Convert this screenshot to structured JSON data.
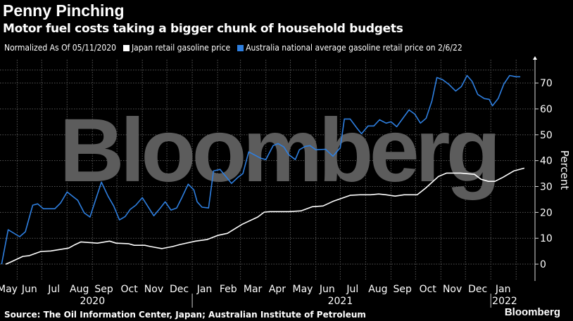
{
  "header": {
    "title": "Penny Pinching",
    "subtitle": "Motor fuel costs taking a bigger chunk of household budgets"
  },
  "footer": {
    "source": "Source: The Oil Information Center, Japan; Australian Institute of Petroleum",
    "logo": "Bloomberg"
  },
  "watermark": "Bloomberg",
  "chart_data": {
    "type": "line",
    "title": "Penny Pinching",
    "subtitle": "Motor fuel costs taking a bigger chunk of household budgets",
    "note": "Normalized As Of 05/11/2020",
    "ylabel": "Percent",
    "xlim": [
      "2020-05-11",
      "2022-02-24"
    ],
    "ylim": [
      -6.5,
      79
    ],
    "yticks": [
      0,
      10,
      20,
      30,
      40,
      50,
      60,
      70
    ],
    "xticks": [
      {
        "label": "May",
        "date": "2020-05-20"
      },
      {
        "label": "Jun",
        "date": "2020-06-16"
      },
      {
        "label": "Jul",
        "date": "2020-07-16"
      },
      {
        "label": "Aug",
        "date": "2020-08-16"
      },
      {
        "label": "Sep",
        "date": "2020-09-15"
      },
      {
        "label": "Oct",
        "date": "2020-10-16"
      },
      {
        "label": "Nov",
        "date": "2020-11-15"
      },
      {
        "label": "Dec",
        "date": "2020-12-16"
      },
      {
        "label": "Jan",
        "date": "2021-01-16"
      },
      {
        "label": "Feb",
        "date": "2021-02-14"
      },
      {
        "label": "Mar",
        "date": "2021-03-16"
      },
      {
        "label": "Apr",
        "date": "2021-04-15"
      },
      {
        "label": "May",
        "date": "2021-05-16"
      },
      {
        "label": "Jun",
        "date": "2021-06-15"
      },
      {
        "label": "Jul",
        "date": "2021-07-16"
      },
      {
        "label": "Aug",
        "date": "2021-08-16"
      },
      {
        "label": "Sep",
        "date": "2021-09-15"
      },
      {
        "label": "Oct",
        "date": "2021-10-16"
      },
      {
        "label": "Nov",
        "date": "2021-11-15"
      },
      {
        "label": "Dec",
        "date": "2021-12-16"
      },
      {
        "label": "Jan",
        "date": "2022-01-16"
      }
    ],
    "years": [
      {
        "label": "2020",
        "date": "2020-09-01"
      },
      {
        "label": "2021",
        "date": "2021-07-01"
      },
      {
        "label": "2022",
        "date": "2022-01-18"
      }
    ],
    "grid": true,
    "legend_placement": "top-left",
    "series": [
      {
        "name": "Japan retail gasoline price",
        "color": "#ffffff",
        "points": [
          [
            "2020-05-18",
            0
          ],
          [
            "2020-05-24",
            0.8
          ],
          [
            "2020-06-08",
            3.0
          ],
          [
            "2020-06-16",
            3.3
          ],
          [
            "2020-06-30",
            4.9
          ],
          [
            "2020-07-12",
            5.1
          ],
          [
            "2020-08-03",
            6.2
          ],
          [
            "2020-08-11",
            7.6
          ],
          [
            "2020-08-18",
            8.6
          ],
          [
            "2020-09-07",
            8.1
          ],
          [
            "2020-09-22",
            8.9
          ],
          [
            "2020-09-30",
            8.1
          ],
          [
            "2020-10-15",
            7.9
          ],
          [
            "2020-10-22",
            7.3
          ],
          [
            "2020-11-04",
            7.3
          ],
          [
            "2020-11-11",
            6.8
          ],
          [
            "2020-11-25",
            6.0
          ],
          [
            "2020-12-08",
            6.8
          ],
          [
            "2020-12-17",
            7.6
          ],
          [
            "2021-01-05",
            8.9
          ],
          [
            "2021-01-19",
            9.5
          ],
          [
            "2021-02-01",
            11.1
          ],
          [
            "2021-02-13",
            11.9
          ],
          [
            "2021-03-03",
            15.4
          ],
          [
            "2021-03-22",
            18.2
          ],
          [
            "2021-03-30",
            20.1
          ],
          [
            "2021-04-06",
            20.3
          ],
          [
            "2021-04-29",
            20.3
          ],
          [
            "2021-05-14",
            20.6
          ],
          [
            "2021-05-28",
            22.2
          ],
          [
            "2021-06-10",
            22.5
          ],
          [
            "2021-06-23",
            24.4
          ],
          [
            "2021-07-05",
            25.7
          ],
          [
            "2021-07-13",
            26.6
          ],
          [
            "2021-07-25",
            26.8
          ],
          [
            "2021-08-07",
            26.8
          ],
          [
            "2021-08-17",
            27.1
          ],
          [
            "2021-08-26",
            26.8
          ],
          [
            "2021-09-06",
            26.3
          ],
          [
            "2021-09-17",
            26.8
          ],
          [
            "2021-10-03",
            26.8
          ],
          [
            "2021-10-13",
            29.3
          ],
          [
            "2021-10-29",
            33.9
          ],
          [
            "2021-11-08",
            35.2
          ],
          [
            "2021-11-25",
            35.2
          ],
          [
            "2021-12-12",
            34.7
          ],
          [
            "2021-12-20",
            32.8
          ],
          [
            "2021-12-29",
            32.0
          ],
          [
            "2022-01-06",
            32.0
          ],
          [
            "2022-01-16",
            33.6
          ],
          [
            "2022-01-29",
            36.0
          ],
          [
            "2022-02-11",
            37.1
          ]
        ]
      },
      {
        "name": "Australia national average gasoline retail price on 2/6/22",
        "color": "#2e7fe0",
        "points": [
          [
            "2020-05-13",
            0
          ],
          [
            "2020-05-21",
            13.3
          ],
          [
            "2020-06-04",
            10.6
          ],
          [
            "2020-06-11",
            12.5
          ],
          [
            "2020-06-20",
            22.8
          ],
          [
            "2020-06-26",
            23.3
          ],
          [
            "2020-07-03",
            21.4
          ],
          [
            "2020-07-17",
            21.4
          ],
          [
            "2020-07-24",
            23.6
          ],
          [
            "2020-08-01",
            27.9
          ],
          [
            "2020-08-14",
            24.7
          ],
          [
            "2020-08-22",
            19.8
          ],
          [
            "2020-08-29",
            18.2
          ],
          [
            "2020-09-12",
            31.7
          ],
          [
            "2020-09-20",
            26.3
          ],
          [
            "2020-09-27",
            22.5
          ],
          [
            "2020-10-04",
            17.1
          ],
          [
            "2020-10-11",
            18.4
          ],
          [
            "2020-10-17",
            21.1
          ],
          [
            "2020-10-24",
            22.8
          ],
          [
            "2020-11-01",
            25.7
          ],
          [
            "2020-11-15",
            18.7
          ],
          [
            "2020-11-23",
            21.7
          ],
          [
            "2020-11-29",
            24.1
          ],
          [
            "2020-12-06",
            20.9
          ],
          [
            "2020-12-13",
            21.7
          ],
          [
            "2020-12-19",
            25.5
          ],
          [
            "2020-12-27",
            30.9
          ],
          [
            "2021-01-03",
            28.7
          ],
          [
            "2021-01-07",
            24.1
          ],
          [
            "2021-01-13",
            22.0
          ],
          [
            "2021-01-21",
            21.7
          ],
          [
            "2021-01-27",
            36.0
          ],
          [
            "2021-02-04",
            36.6
          ],
          [
            "2021-02-18",
            31.2
          ],
          [
            "2021-02-26",
            33.6
          ],
          [
            "2021-03-04",
            35.0
          ],
          [
            "2021-03-11",
            43.4
          ],
          [
            "2021-03-26",
            40.9
          ],
          [
            "2021-04-01",
            40.4
          ],
          [
            "2021-04-10",
            45.8
          ],
          [
            "2021-04-16",
            46.6
          ],
          [
            "2021-04-23",
            45.3
          ],
          [
            "2021-04-29",
            42.3
          ],
          [
            "2021-05-07",
            40.4
          ],
          [
            "2021-05-12",
            44.2
          ],
          [
            "2021-05-19",
            45.5
          ],
          [
            "2021-05-25",
            45.8
          ],
          [
            "2021-06-01",
            44.2
          ],
          [
            "2021-06-13",
            44.4
          ],
          [
            "2021-06-22",
            41.7
          ],
          [
            "2021-07-01",
            45.0
          ],
          [
            "2021-07-06",
            56.1
          ],
          [
            "2021-07-13",
            56.1
          ],
          [
            "2021-07-22",
            52.3
          ],
          [
            "2021-07-27",
            50.4
          ],
          [
            "2021-08-04",
            53.4
          ],
          [
            "2021-08-11",
            53.4
          ],
          [
            "2021-08-18",
            55.8
          ],
          [
            "2021-08-26",
            54.5
          ],
          [
            "2021-09-01",
            55.0
          ],
          [
            "2021-09-08",
            53.1
          ],
          [
            "2021-09-23",
            59.6
          ],
          [
            "2021-09-30",
            58.0
          ],
          [
            "2021-10-07",
            54.5
          ],
          [
            "2021-10-14",
            56.4
          ],
          [
            "2021-10-21",
            63.1
          ],
          [
            "2021-10-27",
            72.1
          ],
          [
            "2021-11-03",
            71.3
          ],
          [
            "2021-11-11",
            69.4
          ],
          [
            "2021-11-19",
            66.9
          ],
          [
            "2021-11-26",
            68.6
          ],
          [
            "2021-12-03",
            72.9
          ],
          [
            "2021-12-09",
            70.7
          ],
          [
            "2021-12-16",
            65.6
          ],
          [
            "2021-12-24",
            64.0
          ],
          [
            "2021-12-30",
            63.7
          ],
          [
            "2022-01-03",
            61.2
          ],
          [
            "2022-01-10",
            64.0
          ],
          [
            "2022-01-17",
            69.6
          ],
          [
            "2022-01-24",
            72.9
          ],
          [
            "2022-02-01",
            72.4
          ],
          [
            "2022-02-06",
            72.4
          ]
        ]
      }
    ]
  }
}
